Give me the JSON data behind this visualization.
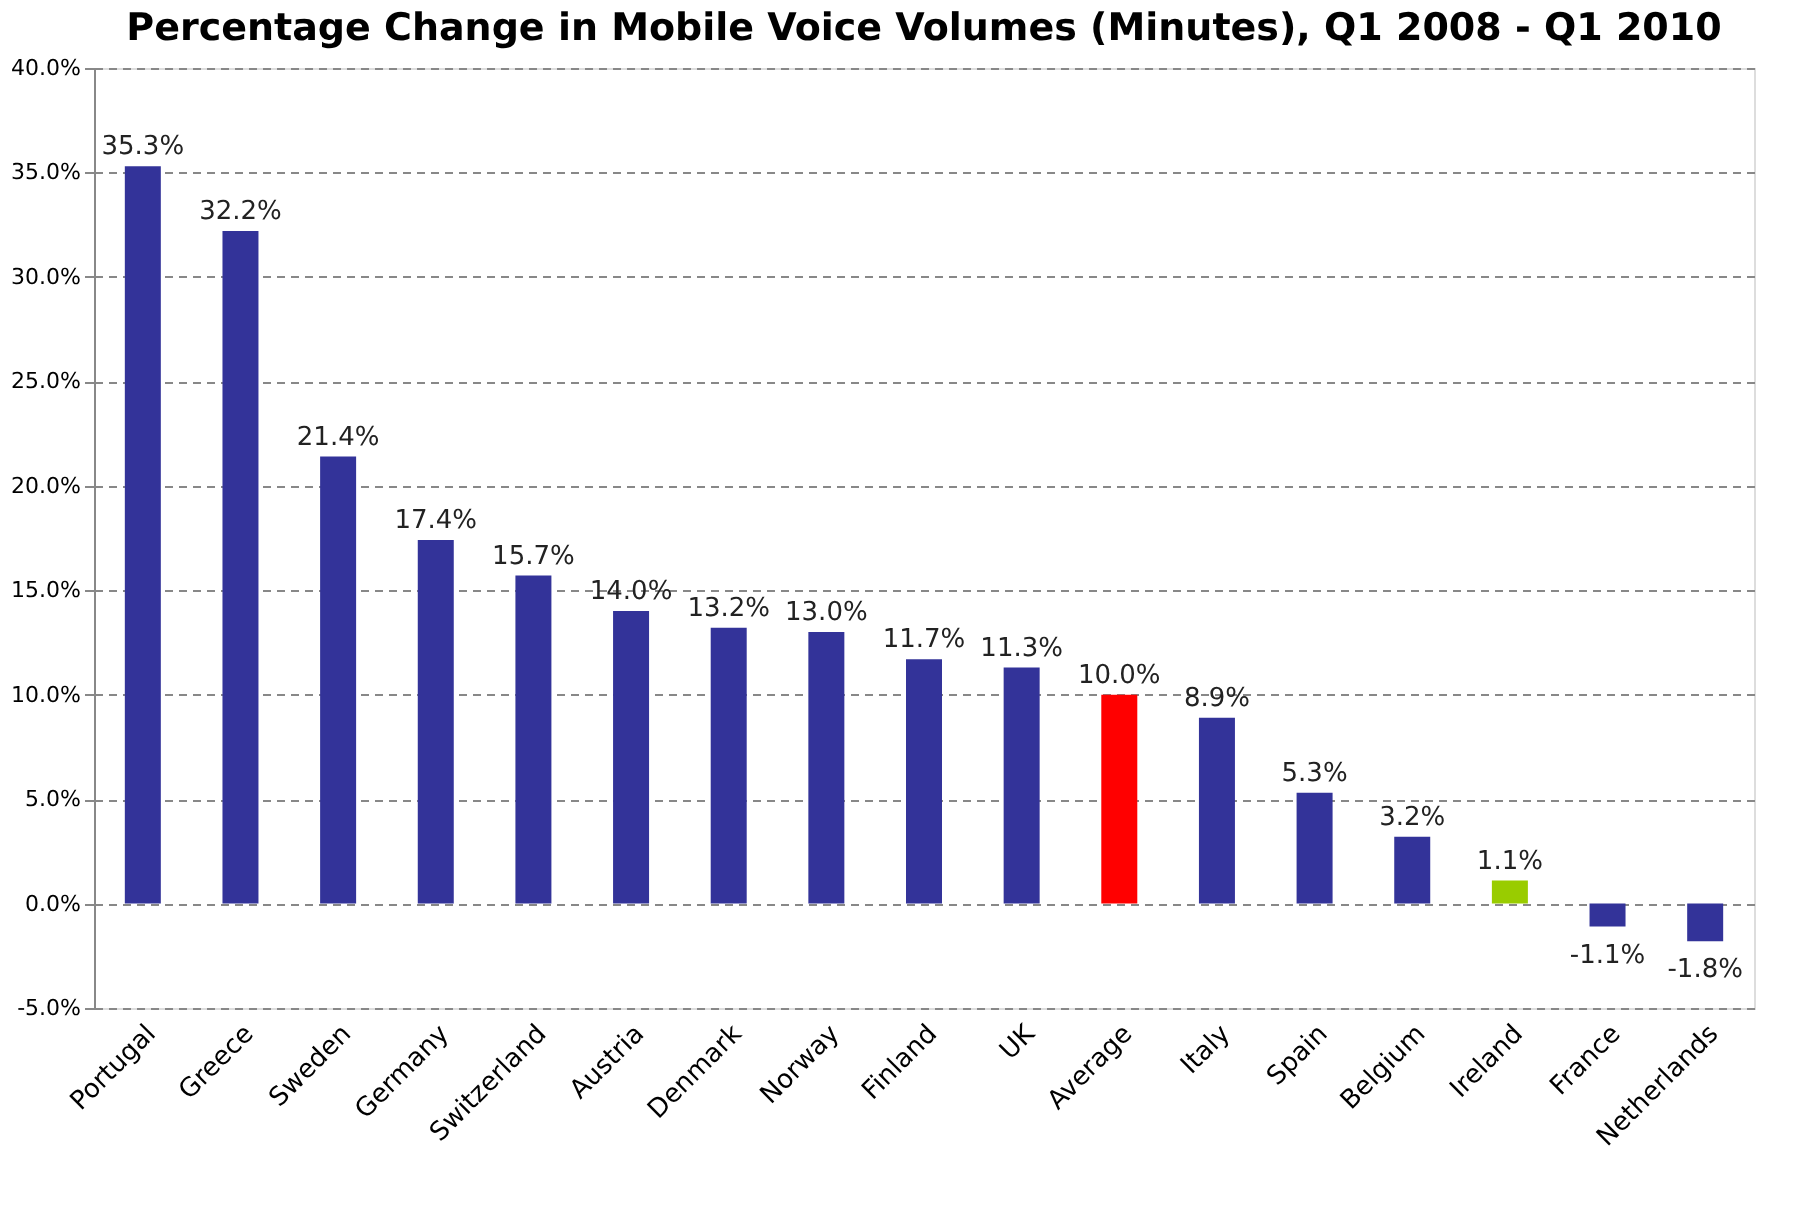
{
  "chart_data": {
    "type": "bar",
    "title": "Percentage Change in Mobile Voice Volumes (Minutes), Q1 2008 - Q1 2010",
    "categories": [
      "Portugal",
      "Greece",
      "Sweden",
      "Germany",
      "Switzerland",
      "Austria",
      "Denmark",
      "Norway",
      "Finland",
      "UK",
      "Average",
      "Italy",
      "Spain",
      "Belgium",
      "Ireland",
      "France",
      "Netherlands"
    ],
    "values": [
      35.3,
      32.2,
      21.4,
      17.4,
      15.7,
      14.0,
      13.2,
      13.0,
      11.7,
      11.3,
      10.0,
      8.9,
      5.3,
      3.2,
      1.1,
      -1.1,
      -1.8
    ],
    "value_labels": [
      "35.3%",
      "32.2%",
      "21.4%",
      "17.4%",
      "15.7%",
      "14.0%",
      "13.2%",
      "13.0%",
      "11.7%",
      "11.3%",
      "10.0%",
      "8.9%",
      "5.3%",
      "3.2%",
      "1.1%",
      "-1.1%",
      "-1.8%"
    ],
    "colors": [
      "#333399",
      "#333399",
      "#333399",
      "#333399",
      "#333399",
      "#333399",
      "#333399",
      "#333399",
      "#333399",
      "#333399",
      "#ff0000",
      "#333399",
      "#333399",
      "#333399",
      "#99cc00",
      "#333399",
      "#333399"
    ],
    "ylim": [
      -5,
      40
    ],
    "yticks": [
      {
        "value": -5,
        "label": "-5.0%"
      },
      {
        "value": 0,
        "label": "0.0%"
      },
      {
        "value": 5,
        "label": "5.0%"
      },
      {
        "value": 10,
        "label": "10.0%"
      },
      {
        "value": 15,
        "label": "15.0%"
      },
      {
        "value": 20,
        "label": "20.0%"
      },
      {
        "value": 25,
        "label": "25.0%"
      },
      {
        "value": 30,
        "label": "30.0%"
      },
      {
        "value": 35,
        "label": "35.0%"
      },
      {
        "value": 40,
        "label": "40.0%"
      }
    ],
    "grid": "y"
  }
}
